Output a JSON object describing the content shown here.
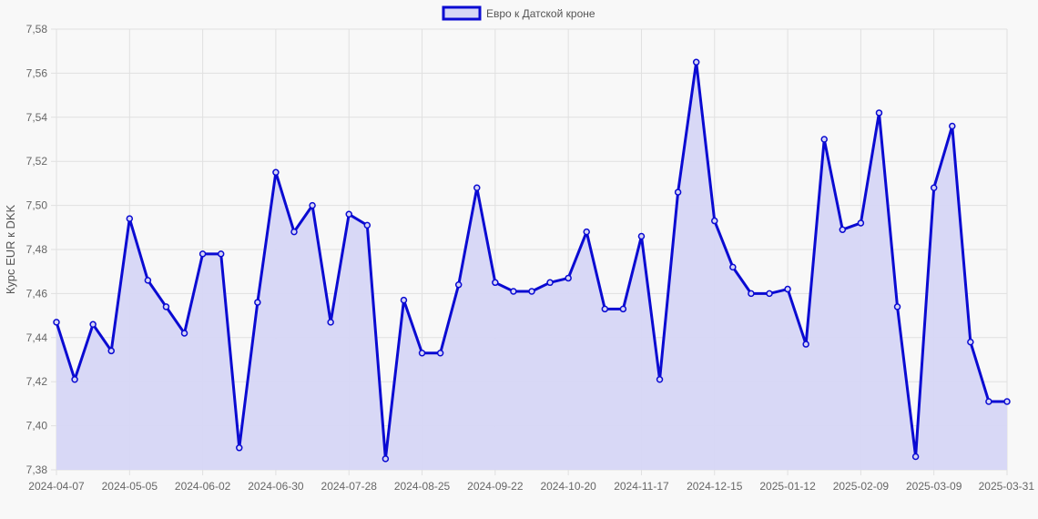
{
  "chart_data": {
    "type": "line",
    "ylabel": "Курс EUR к DKK",
    "ylim": [
      7.38,
      7.58
    ],
    "y_ticks": [
      "7,38",
      "7,40",
      "7,42",
      "7,44",
      "7,46",
      "7,48",
      "7,50",
      "7,52",
      "7,54",
      "7,56",
      "7,58"
    ],
    "y_tick_values": [
      7.38,
      7.4,
      7.42,
      7.44,
      7.46,
      7.48,
      7.5,
      7.52,
      7.54,
      7.56,
      7.58
    ],
    "x_tick_labels": [
      "2024-04-07",
      "2024-05-05",
      "2024-06-02",
      "2024-06-30",
      "2024-07-28",
      "2024-08-25",
      "2024-09-22",
      "2024-10-20",
      "2024-11-17",
      "2024-12-15",
      "2025-01-12",
      "2025-02-09",
      "2025-03-09",
      "2025-03-31"
    ],
    "grid": true,
    "legend_position": "top-center",
    "colors": {
      "line": "#0a0ad2",
      "fill": "#d6d6f5",
      "grid": "#e0e0e0",
      "background": "#f8f8f8"
    },
    "series": [
      {
        "name": "Евро к Датской кроне",
        "values": [
          7.447,
          7.421,
          7.446,
          7.434,
          7.494,
          7.466,
          7.454,
          7.442,
          7.478,
          7.478,
          7.39,
          7.456,
          7.515,
          7.488,
          7.5,
          7.447,
          7.496,
          7.491,
          7.385,
          7.457,
          7.433,
          7.433,
          7.464,
          7.508,
          7.465,
          7.461,
          7.461,
          7.465,
          7.467,
          7.488,
          7.453,
          7.453,
          7.486,
          7.421,
          7.506,
          7.565,
          7.493,
          7.472,
          7.46,
          7.46,
          7.462,
          7.437,
          7.53,
          7.489,
          7.492,
          7.542,
          7.454,
          7.386,
          7.508,
          7.536,
          7.438,
          7.411,
          7.411
        ]
      }
    ]
  }
}
